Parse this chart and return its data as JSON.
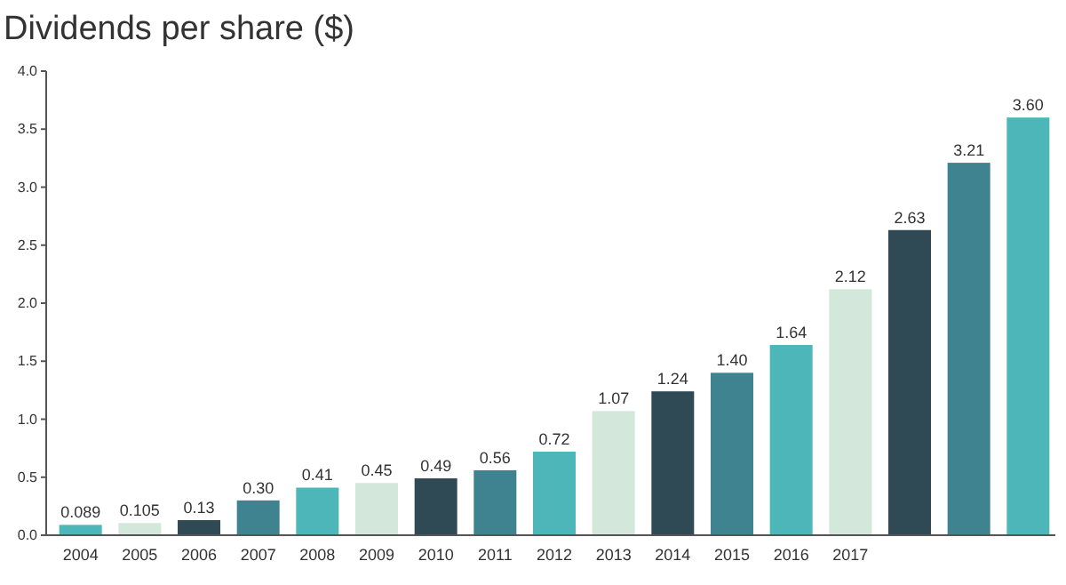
{
  "chart_data": {
    "type": "bar",
    "title": "Dividends per share ($)",
    "categories": [
      "2004",
      "2005",
      "2006",
      "2007",
      "2008",
      "2009",
      "2010",
      "2011",
      "2012",
      "2013",
      "2014",
      "2015",
      "2016",
      "2017",
      null,
      null,
      null
    ],
    "values": [
      0.089,
      0.105,
      0.13,
      0.3,
      0.41,
      0.45,
      0.49,
      0.56,
      0.72,
      1.07,
      1.24,
      1.4,
      1.64,
      2.12,
      2.63,
      3.21,
      3.6
    ],
    "value_labels": [
      "0.089",
      "0.105",
      "0.13",
      "0.30",
      "0.41",
      "0.45",
      "0.49",
      "0.56",
      "0.72",
      "1.07",
      "1.24",
      "1.40",
      "1.64",
      "2.12",
      "2.63",
      "3.21",
      "3.60"
    ],
    "colors": [
      "#4db6b8",
      "#d3e7da",
      "#2f4a55",
      "#3f8290",
      "#4db6b8",
      "#d3e7da",
      "#2f4a55",
      "#3f8290",
      "#4db6b8",
      "#d3e7da",
      "#2f4a55",
      "#3f8290",
      "#4db6b8",
      "#d3e7da",
      "#2f4a55",
      "#3f8290",
      "#4db6b8"
    ],
    "ylim": [
      0,
      4
    ],
    "yticks": [
      {
        "value": 0,
        "label": "0.0"
      },
      {
        "value": 0.5,
        "label": "0.5"
      },
      {
        "value": 1,
        "label": "1.0"
      },
      {
        "value": 1.5,
        "label": "1.5"
      },
      {
        "value": 2,
        "label": "2.0"
      },
      {
        "value": 2.5,
        "label": "2.5"
      },
      {
        "value": 3,
        "label": "3.0"
      },
      {
        "value": 3.5,
        "label": "3.5"
      },
      {
        "value": 4,
        "label": "4.0"
      }
    ],
    "grid": false
  }
}
